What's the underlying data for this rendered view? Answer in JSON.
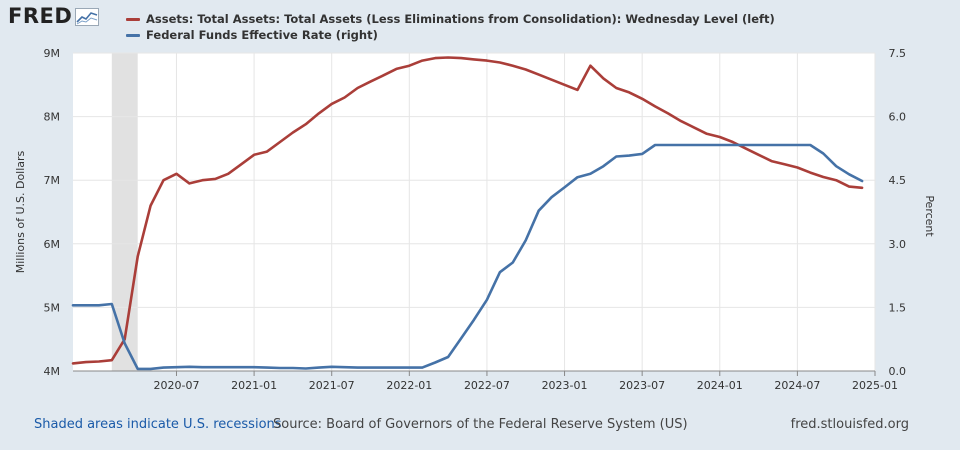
{
  "brand": {
    "logo_text": "FRED"
  },
  "legend": [
    {
      "label": "Assets: Total Assets: Total Assets (Less Eliminations from Consolidation): Wednesday Level (left)",
      "color": "#aa3e39"
    },
    {
      "label": "Federal Funds Effective Rate (right)",
      "color": "#4572a7"
    }
  ],
  "footer": {
    "recession_note": "Shaded areas indicate U.S. recessions",
    "source": "Source: Board of Governors of the Federal Reserve System (US)",
    "site": "fred.stlouisfed.org"
  },
  "chart_data": {
    "type": "line",
    "xlim": [
      "2019-11-01",
      "2025-01-01"
    ],
    "x_ticks": [
      "2020-07",
      "2021-01",
      "2021-07",
      "2022-01",
      "2022-07",
      "2023-01",
      "2023-07",
      "2024-01",
      "2024-07",
      "2025-01"
    ],
    "y_left": {
      "label": "Millions of U.S. Dollars",
      "ylim": [
        4,
        9
      ],
      "ticks": [
        "4M",
        "5M",
        "6M",
        "7M",
        "8M",
        "9M"
      ],
      "tick_values": [
        4,
        5,
        6,
        7,
        8,
        9
      ]
    },
    "y_right": {
      "label": "Percent",
      "ylim": [
        0,
        7.5
      ],
      "ticks": [
        "0.0",
        "1.5",
        "3.0",
        "4.5",
        "6.0",
        "7.5"
      ],
      "tick_values": [
        0,
        1.5,
        3,
        4.5,
        6,
        7.5
      ]
    },
    "recessions": [
      {
        "start": "2020-02",
        "end": "2020-04"
      }
    ],
    "grid": true,
    "series": [
      {
        "name": "Assets: Total Assets: Total Assets (Less Eliminations from Consolidation): Wednesday Level (left)",
        "axis": "left",
        "color": "#aa3e39",
        "points": [
          [
            "2019-11",
            4.12
          ],
          [
            "2019-12",
            4.14
          ],
          [
            "2020-01",
            4.15
          ],
          [
            "2020-02",
            4.17
          ],
          [
            "2020-03",
            4.5
          ],
          [
            "2020-04",
            5.8
          ],
          [
            "2020-05",
            6.6
          ],
          [
            "2020-06",
            7.0
          ],
          [
            "2020-07",
            7.1
          ],
          [
            "2020-08",
            6.95
          ],
          [
            "2020-09",
            7.0
          ],
          [
            "2020-10",
            7.02
          ],
          [
            "2020-11",
            7.1
          ],
          [
            "2020-12",
            7.25
          ],
          [
            "2021-01",
            7.4
          ],
          [
            "2021-02",
            7.45
          ],
          [
            "2021-03",
            7.6
          ],
          [
            "2021-04",
            7.75
          ],
          [
            "2021-05",
            7.88
          ],
          [
            "2021-06",
            8.05
          ],
          [
            "2021-07",
            8.2
          ],
          [
            "2021-08",
            8.3
          ],
          [
            "2021-09",
            8.45
          ],
          [
            "2021-10",
            8.55
          ],
          [
            "2021-11",
            8.65
          ],
          [
            "2021-12",
            8.75
          ],
          [
            "2022-01",
            8.8
          ],
          [
            "2022-02",
            8.88
          ],
          [
            "2022-03",
            8.92
          ],
          [
            "2022-04",
            8.93
          ],
          [
            "2022-05",
            8.92
          ],
          [
            "2022-06",
            8.9
          ],
          [
            "2022-07",
            8.88
          ],
          [
            "2022-08",
            8.85
          ],
          [
            "2022-09",
            8.8
          ],
          [
            "2022-10",
            8.74
          ],
          [
            "2022-11",
            8.66
          ],
          [
            "2022-12",
            8.58
          ],
          [
            "2023-01",
            8.5
          ],
          [
            "2023-02",
            8.42
          ],
          [
            "2023-03",
            8.8
          ],
          [
            "2023-04",
            8.6
          ],
          [
            "2023-05",
            8.45
          ],
          [
            "2023-06",
            8.38
          ],
          [
            "2023-07",
            8.28
          ],
          [
            "2023-08",
            8.16
          ],
          [
            "2023-09",
            8.05
          ],
          [
            "2023-10",
            7.93
          ],
          [
            "2023-11",
            7.83
          ],
          [
            "2023-12",
            7.73
          ],
          [
            "2024-01",
            7.68
          ],
          [
            "2024-02",
            7.6
          ],
          [
            "2024-03",
            7.5
          ],
          [
            "2024-04",
            7.4
          ],
          [
            "2024-05",
            7.3
          ],
          [
            "2024-06",
            7.25
          ],
          [
            "2024-07",
            7.2
          ],
          [
            "2024-08",
            7.12
          ],
          [
            "2024-09",
            7.05
          ],
          [
            "2024-10",
            7.0
          ],
          [
            "2024-11",
            6.9
          ],
          [
            "2024-12",
            6.88
          ]
        ]
      },
      {
        "name": "Federal Funds Effective Rate (right)",
        "axis": "right",
        "color": "#4572a7",
        "points": [
          [
            "2019-11",
            1.55
          ],
          [
            "2019-12",
            1.55
          ],
          [
            "2020-01",
            1.55
          ],
          [
            "2020-02",
            1.58
          ],
          [
            "2020-03",
            0.65
          ],
          [
            "2020-04",
            0.05
          ],
          [
            "2020-05",
            0.05
          ],
          [
            "2020-06",
            0.08
          ],
          [
            "2020-07",
            0.09
          ],
          [
            "2020-08",
            0.1
          ],
          [
            "2020-09",
            0.09
          ],
          [
            "2020-10",
            0.09
          ],
          [
            "2020-11",
            0.09
          ],
          [
            "2020-12",
            0.09
          ],
          [
            "2021-01",
            0.09
          ],
          [
            "2021-02",
            0.08
          ],
          [
            "2021-03",
            0.07
          ],
          [
            "2021-04",
            0.07
          ],
          [
            "2021-05",
            0.06
          ],
          [
            "2021-06",
            0.08
          ],
          [
            "2021-07",
            0.1
          ],
          [
            "2021-08",
            0.09
          ],
          [
            "2021-09",
            0.08
          ],
          [
            "2021-10",
            0.08
          ],
          [
            "2021-11",
            0.08
          ],
          [
            "2021-12",
            0.08
          ],
          [
            "2022-01",
            0.08
          ],
          [
            "2022-02",
            0.08
          ],
          [
            "2022-03",
            0.2
          ],
          [
            "2022-04",
            0.33
          ],
          [
            "2022-05",
            0.77
          ],
          [
            "2022-06",
            1.21
          ],
          [
            "2022-07",
            1.68
          ],
          [
            "2022-08",
            2.33
          ],
          [
            "2022-09",
            2.56
          ],
          [
            "2022-10",
            3.08
          ],
          [
            "2022-11",
            3.78
          ],
          [
            "2022-12",
            4.1
          ],
          [
            "2023-01",
            4.33
          ],
          [
            "2023-02",
            4.57
          ],
          [
            "2023-03",
            4.65
          ],
          [
            "2023-04",
            4.83
          ],
          [
            "2023-05",
            5.06
          ],
          [
            "2023-06",
            5.08
          ],
          [
            "2023-07",
            5.12
          ],
          [
            "2023-08",
            5.33
          ],
          [
            "2023-09",
            5.33
          ],
          [
            "2023-10",
            5.33
          ],
          [
            "2023-11",
            5.33
          ],
          [
            "2023-12",
            5.33
          ],
          [
            "2024-01",
            5.33
          ],
          [
            "2024-02",
            5.33
          ],
          [
            "2024-03",
            5.33
          ],
          [
            "2024-04",
            5.33
          ],
          [
            "2024-05",
            5.33
          ],
          [
            "2024-06",
            5.33
          ],
          [
            "2024-07",
            5.33
          ],
          [
            "2024-08",
            5.33
          ],
          [
            "2024-09",
            5.13
          ],
          [
            "2024-10",
            4.83
          ],
          [
            "2024-11",
            4.64
          ],
          [
            "2024-12",
            4.48
          ]
        ]
      }
    ]
  }
}
